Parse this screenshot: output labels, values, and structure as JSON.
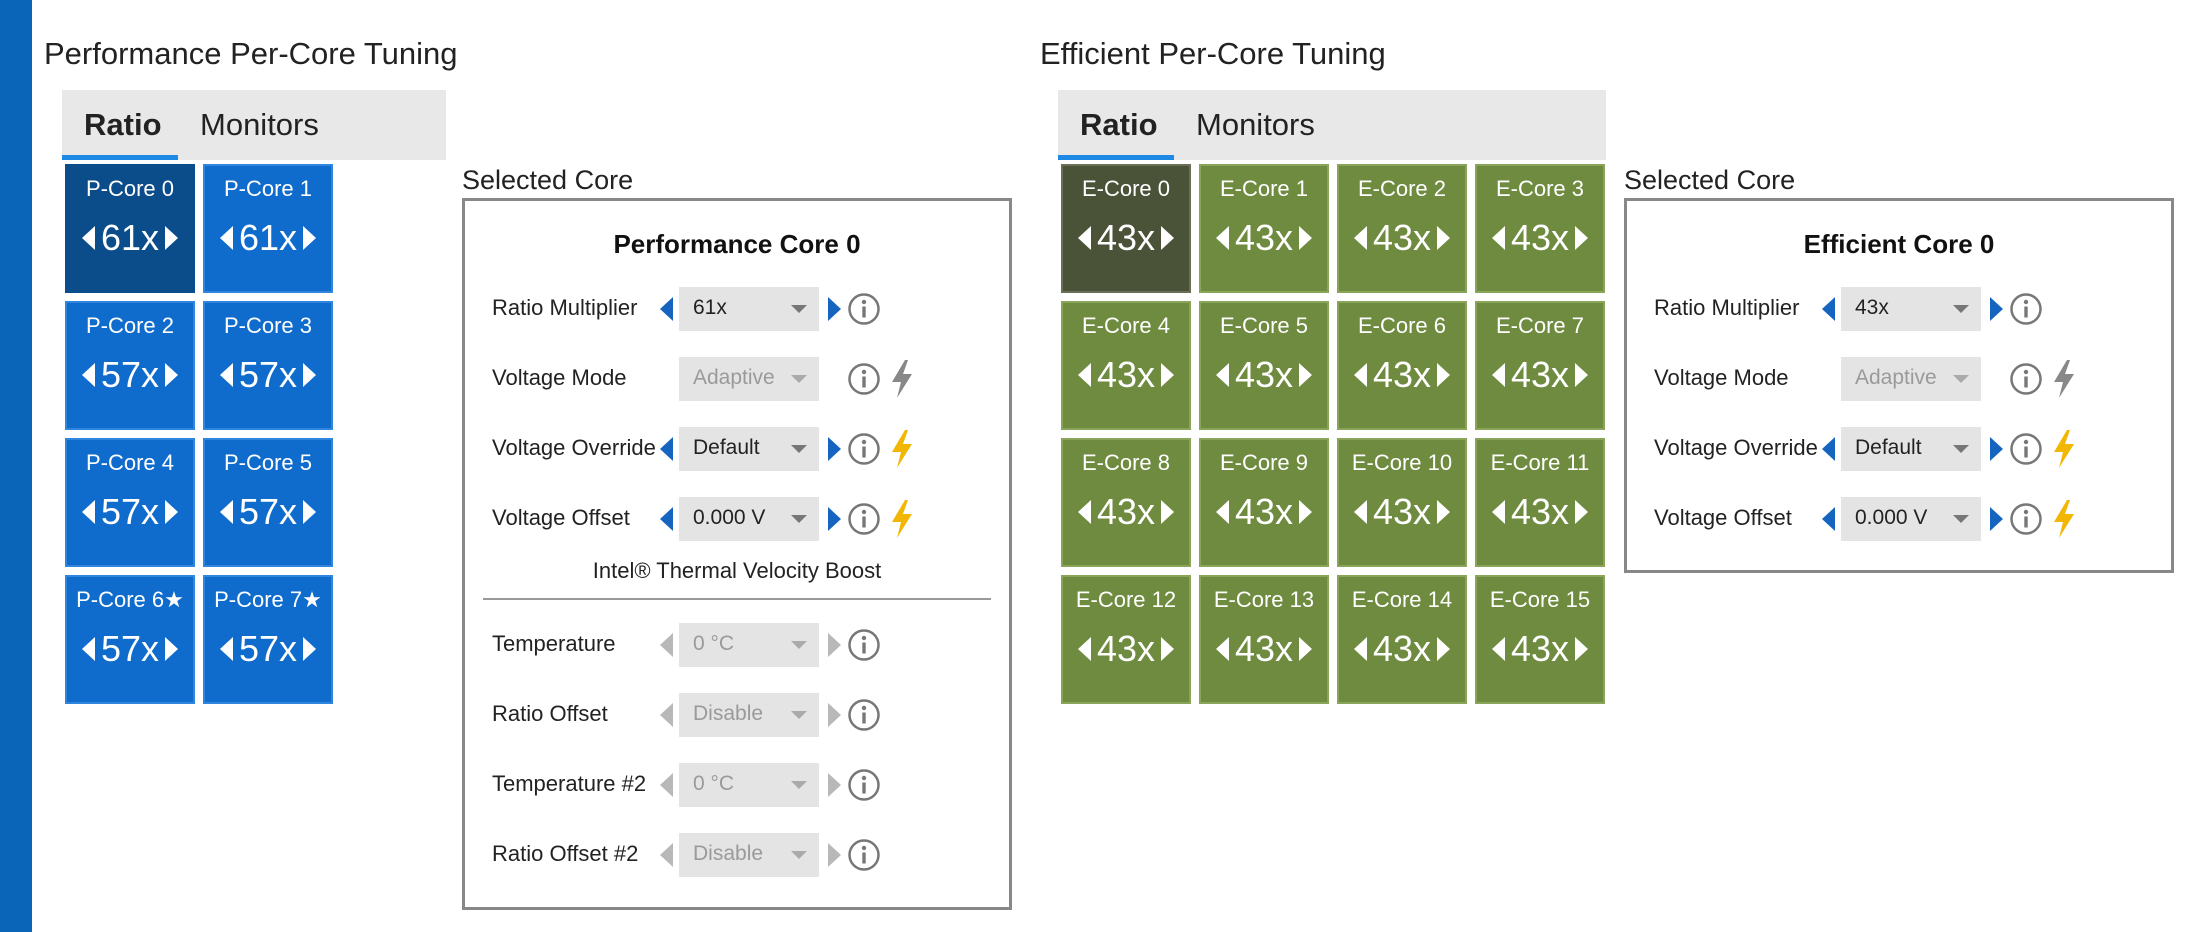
{
  "performance": {
    "title": "Performance Per-Core Tuning",
    "tabs": [
      {
        "label": "Ratio",
        "active": true
      },
      {
        "label": "Monitors",
        "active": false
      }
    ],
    "cores": [
      {
        "name": "P-Core 0",
        "ratio": "61x",
        "selected": true
      },
      {
        "name": "P-Core 1",
        "ratio": "61x"
      },
      {
        "name": "P-Core 2",
        "ratio": "57x"
      },
      {
        "name": "P-Core 3",
        "ratio": "57x"
      },
      {
        "name": "P-Core 4",
        "ratio": "57x"
      },
      {
        "name": "P-Core 5",
        "ratio": "57x"
      },
      {
        "name": "P-Core 6★",
        "ratio": "57x"
      },
      {
        "name": "P-Core 7★",
        "ratio": "57x"
      }
    ],
    "selected_label": "Selected Core",
    "selected": {
      "title": "Performance Core 0",
      "rows": [
        {
          "label": "Ratio Multiplier",
          "value": "61x",
          "enabled": true,
          "bolt": null
        },
        {
          "label": "Voltage Mode",
          "value": "Adaptive",
          "enabled": false,
          "bolt": "gray",
          "arrows": false
        },
        {
          "label": "Voltage Override",
          "value": "Default",
          "enabled": true,
          "bolt": "yellow"
        },
        {
          "label": "Voltage Offset",
          "value": "0.000 V",
          "enabled": true,
          "bolt": "yellow"
        }
      ],
      "tvb_title": "Intel® Thermal Velocity Boost",
      "tvb_rows": [
        {
          "label": "Temperature",
          "value": "0 °C"
        },
        {
          "label": "Ratio Offset",
          "value": "Disable"
        },
        {
          "label": "Temperature #2",
          "value": "0 °C"
        },
        {
          "label": "Ratio Offset #2",
          "value": "Disable"
        }
      ]
    }
  },
  "efficient": {
    "title": "Efficient Per-Core Tuning",
    "tabs": [
      {
        "label": "Ratio",
        "active": true
      },
      {
        "label": "Monitors",
        "active": false
      }
    ],
    "cores": [
      {
        "name": "E-Core 0",
        "ratio": "43x",
        "selected": true
      },
      {
        "name": "E-Core 1",
        "ratio": "43x"
      },
      {
        "name": "E-Core 2",
        "ratio": "43x"
      },
      {
        "name": "E-Core 3",
        "ratio": "43x"
      },
      {
        "name": "E-Core 4",
        "ratio": "43x"
      },
      {
        "name": "E-Core 5",
        "ratio": "43x"
      },
      {
        "name": "E-Core 6",
        "ratio": "43x"
      },
      {
        "name": "E-Core 7",
        "ratio": "43x"
      },
      {
        "name": "E-Core 8",
        "ratio": "43x"
      },
      {
        "name": "E-Core 9",
        "ratio": "43x"
      },
      {
        "name": "E-Core 10",
        "ratio": "43x"
      },
      {
        "name": "E-Core 11",
        "ratio": "43x"
      },
      {
        "name": "E-Core 12",
        "ratio": "43x"
      },
      {
        "name": "E-Core 13",
        "ratio": "43x"
      },
      {
        "name": "E-Core 14",
        "ratio": "43x"
      },
      {
        "name": "E-Core 15",
        "ratio": "43x"
      }
    ],
    "selected_label": "Selected Core",
    "selected": {
      "title": "Efficient Core 0",
      "rows": [
        {
          "label": "Ratio Multiplier",
          "value": "43x",
          "enabled": true,
          "bolt": null
        },
        {
          "label": "Voltage Mode",
          "value": "Adaptive",
          "enabled": false,
          "bolt": "gray",
          "arrows": false
        },
        {
          "label": "Voltage Override",
          "value": "Default",
          "enabled": true,
          "bolt": "yellow"
        },
        {
          "label": "Voltage Offset",
          "value": "0.000 V",
          "enabled": true,
          "bolt": "yellow"
        }
      ]
    }
  },
  "colors": {
    "accent": "#0a64b8",
    "p_core": "#0f6ccc",
    "p_core_selected": "#0b4c8a",
    "e_core": "#6f8b3f",
    "e_core_selected": "#4a5238",
    "bolt_active": "#f2b705",
    "bolt_inactive": "#888888"
  },
  "icons": {
    "info": "info-icon",
    "bolt": "lightning-bolt-icon",
    "left": "arrow-left-icon",
    "right": "arrow-right-icon",
    "dropdown": "chevron-down-icon"
  }
}
